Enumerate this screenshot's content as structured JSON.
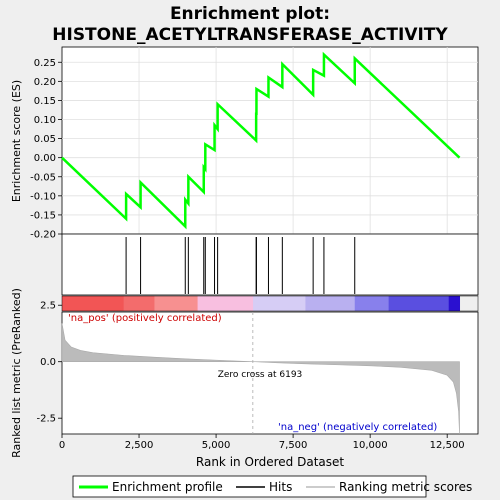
{
  "chart_data": {
    "type": "line",
    "title_line1": "Enrichment plot:",
    "title_line2": "HISTONE_ACETYLTRANSFERASE_ACTIVITY",
    "top_panel": {
      "ylabel": "Enrichment score (ES)",
      "ylim": [
        -0.2,
        0.29
      ],
      "yticks": [
        0.25,
        0.2,
        0.15,
        0.1,
        0.05,
        0.0,
        -0.05,
        -0.1,
        -0.15,
        -0.2
      ],
      "ytick_labels": [
        "0.25",
        "0.20",
        "0.15",
        "0.10",
        "0.05",
        "0.00",
        "-0.05",
        "-0.10",
        "-0.15",
        "-0.20"
      ],
      "grid": true,
      "series_color": "#00ff00",
      "es_points": [
        [
          0,
          0.0
        ],
        [
          2080,
          -0.16
        ],
        [
          2081,
          -0.095
        ],
        [
          2550,
          -0.13
        ],
        [
          2551,
          -0.065
        ],
        [
          4000,
          -0.18
        ],
        [
          4001,
          -0.11
        ],
        [
          4100,
          -0.12
        ],
        [
          4101,
          -0.05
        ],
        [
          4600,
          -0.09
        ],
        [
          4601,
          -0.025
        ],
        [
          4650,
          -0.03
        ],
        [
          4651,
          0.035
        ],
        [
          4950,
          0.02
        ],
        [
          4951,
          0.085
        ],
        [
          5050,
          0.075
        ],
        [
          5051,
          0.14
        ],
        [
          6300,
          0.045
        ],
        [
          6301,
          0.115
        ],
        [
          6310,
          0.115
        ],
        [
          6311,
          0.18
        ],
        [
          6700,
          0.16
        ],
        [
          6701,
          0.21
        ],
        [
          7150,
          0.185
        ],
        [
          7151,
          0.245
        ],
        [
          8150,
          0.165
        ],
        [
          8151,
          0.23
        ],
        [
          8500,
          0.215
        ],
        [
          8501,
          0.27
        ],
        [
          9500,
          0.195
        ],
        [
          9501,
          0.26
        ],
        [
          12900,
          0.0
        ]
      ],
      "hits": [
        2080,
        2550,
        4000,
        4100,
        4600,
        4650,
        4950,
        5050,
        6300,
        6310,
        6700,
        7150,
        8150,
        8500,
        9500
      ]
    },
    "color_bar": {
      "segments": [
        {
          "from": 0,
          "to": 2000,
          "color": "#f25555"
        },
        {
          "from": 2000,
          "to": 3000,
          "color": "#f36c6c"
        },
        {
          "from": 3000,
          "to": 4400,
          "color": "#f79090"
        },
        {
          "from": 4400,
          "to": 6200,
          "color": "#f8bfe0"
        },
        {
          "from": 6200,
          "to": 7900,
          "color": "#d6cdf5"
        },
        {
          "from": 7900,
          "to": 9500,
          "color": "#b9b0f0"
        },
        {
          "from": 9500,
          "to": 10600,
          "color": "#8880ec"
        },
        {
          "from": 10600,
          "to": 12550,
          "color": "#5a4fe0"
        },
        {
          "from": 12550,
          "to": 12900,
          "color": "#2a10d0"
        }
      ]
    },
    "bottom_panel": {
      "ylabel": "Ranked list metric (PreRanked)",
      "xlabel": "Rank in Ordered Dataset",
      "ylim": [
        -3.2,
        2.2
      ],
      "yticks": [
        2.5,
        0.0,
        -2.5
      ],
      "ytick_labels": [
        "2.5",
        "0.0",
        "-2.5"
      ],
      "xlim": [
        0,
        13500
      ],
      "xticks": [
        0,
        2500,
        5000,
        7500,
        10000,
        12500
      ],
      "xtick_labels": [
        "0",
        "2,500",
        "5,000",
        "7,500",
        "10,000",
        "12,500"
      ],
      "zero_cross": 6193,
      "zero_cross_label": "Zero cross at 6193",
      "pos_label": "'na_pos' (positively correlated)",
      "neg_label": "'na_neg' (negatively correlated)",
      "metric_points": [
        [
          0,
          1.7
        ],
        [
          100,
          0.95
        ],
        [
          300,
          0.65
        ],
        [
          600,
          0.5
        ],
        [
          1000,
          0.4
        ],
        [
          2000,
          0.28
        ],
        [
          3000,
          0.2
        ],
        [
          4000,
          0.13
        ],
        [
          5000,
          0.07
        ],
        [
          6193,
          0.0
        ],
        [
          7000,
          -0.05
        ],
        [
          8000,
          -0.1
        ],
        [
          9000,
          -0.14
        ],
        [
          10000,
          -0.18
        ],
        [
          11000,
          -0.25
        ],
        [
          12000,
          -0.38
        ],
        [
          12500,
          -0.6
        ],
        [
          12700,
          -0.9
        ],
        [
          12800,
          -1.4
        ],
        [
          12870,
          -2.2
        ],
        [
          12900,
          -3.2
        ]
      ]
    },
    "legend": {
      "items": [
        {
          "label": "Enrichment profile",
          "color": "#00ff00"
        },
        {
          "label": "Hits",
          "color": "#000000"
        },
        {
          "label": "Ranking metric scores",
          "color": "#bbbbbb"
        }
      ]
    }
  }
}
